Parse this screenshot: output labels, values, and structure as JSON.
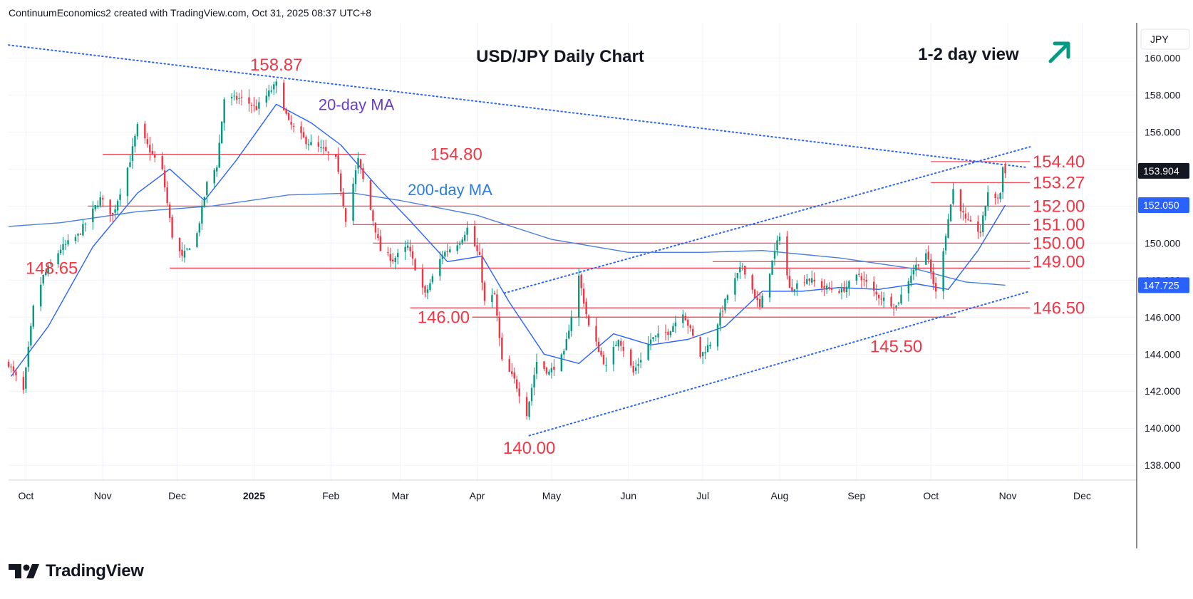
{
  "header": "ContinuumEconomics2 created with TradingView.com, Oct 31, 2025 08:37 UTC+8",
  "footer_brand": "TradingView",
  "colors": {
    "up": "#089981",
    "down": "#f23645",
    "level": "#f23645",
    "trend": "#2962ff",
    "ma20": "#2962ff",
    "ma200": "#4a7fe0",
    "label_ma20": "#6a3dc8",
    "label_ma200": "#2a7de1",
    "arrow": "#089981",
    "grid": "#f0f3fa",
    "text": "#131722"
  },
  "chart_data": {
    "type": "candlestick",
    "title": "USD/JPY Daily Chart",
    "view_label": "1-2 day view",
    "view_direction": "up",
    "currency": "JPY",
    "y_axis": {
      "range": [
        137.2,
        161.9
      ],
      "ticks": [
        "160.000",
        "158.000",
        "156.000",
        "154.000",
        "152.000",
        "150.000",
        "148.000",
        "146.000",
        "144.000",
        "142.000",
        "140.000",
        "138.000"
      ],
      "tick_values": [
        160,
        158,
        156,
        154,
        152,
        150,
        148,
        146,
        144,
        142,
        140,
        138
      ],
      "last_price": "153.904",
      "price_tags": [
        {
          "label": "153.904",
          "value": 153.904,
          "style": "dark"
        },
        {
          "label": "152.050",
          "value": 152.05,
          "style": "blue"
        },
        {
          "label": "147.725",
          "value": 147.725,
          "style": "blue"
        }
      ]
    },
    "x_axis": {
      "start": "2024-09-24",
      "end": "2025-12-23",
      "ticks": [
        {
          "label": "Oct",
          "date": "2024-10-01",
          "bold": false
        },
        {
          "label": "Nov",
          "date": "2024-11-01",
          "bold": false
        },
        {
          "label": "Dec",
          "date": "2024-12-01",
          "bold": false
        },
        {
          "label": "2025",
          "date": "2025-01-01",
          "bold": true
        },
        {
          "label": "Feb",
          "date": "2025-02-01",
          "bold": false
        },
        {
          "label": "Mar",
          "date": "2025-03-01",
          "bold": false
        },
        {
          "label": "Apr",
          "date": "2025-04-01",
          "bold": false
        },
        {
          "label": "May",
          "date": "2025-05-01",
          "bold": false
        },
        {
          "label": "Jun",
          "date": "2025-06-01",
          "bold": false
        },
        {
          "label": "Jul",
          "date": "2025-07-01",
          "bold": false
        },
        {
          "label": "Aug",
          "date": "2025-08-01",
          "bold": false
        },
        {
          "label": "Sep",
          "date": "2025-09-01",
          "bold": false
        },
        {
          "label": "Oct",
          "date": "2025-10-01",
          "bold": false
        },
        {
          "label": "Nov",
          "date": "2025-11-01",
          "bold": false
        },
        {
          "label": "Dec",
          "date": "2025-12-01",
          "bold": false
        }
      ]
    },
    "grid": true,
    "price_anchors": [
      [
        "2024-09-24",
        143.5
      ],
      [
        "2024-09-30",
        142.0
      ],
      [
        "2024-10-04",
        146.5
      ],
      [
        "2024-10-08",
        148.2
      ],
      [
        "2024-10-15",
        149.7
      ],
      [
        "2024-10-22",
        150.4
      ],
      [
        "2024-10-31",
        152.4
      ],
      [
        "2024-11-05",
        151.5
      ],
      [
        "2024-11-12",
        154.5
      ],
      [
        "2024-11-15",
        156.3
      ],
      [
        "2024-11-20",
        155.0
      ],
      [
        "2024-11-25",
        153.9
      ],
      [
        "2024-11-29",
        150.4
      ],
      [
        "2024-12-03",
        149.2
      ],
      [
        "2024-12-09",
        150.5
      ],
      [
        "2024-12-13",
        153.2
      ],
      [
        "2024-12-17",
        154.2
      ],
      [
        "2024-12-20",
        157.8
      ],
      [
        "2024-12-27",
        157.8
      ],
      [
        "2025-01-02",
        157.3
      ],
      [
        "2025-01-10",
        158.6
      ],
      [
        "2025-01-15",
        156.5
      ],
      [
        "2025-01-22",
        155.5
      ],
      [
        "2025-01-29",
        155.0
      ],
      [
        "2025-02-03",
        154.5
      ],
      [
        "2025-02-07",
        151.3
      ],
      [
        "2025-02-12",
        154.5
      ],
      [
        "2025-02-17",
        151.8
      ],
      [
        "2025-02-21",
        149.6
      ],
      [
        "2025-02-26",
        149.1
      ],
      [
        "2025-03-04",
        149.8
      ],
      [
        "2025-03-11",
        147.2
      ],
      [
        "2025-03-18",
        149.4
      ],
      [
        "2025-03-25",
        150.1
      ],
      [
        "2025-03-28",
        150.8
      ],
      [
        "2025-04-02",
        149.2
      ],
      [
        "2025-04-04",
        146.8
      ],
      [
        "2025-04-08",
        147.2
      ],
      [
        "2025-04-11",
        143.6
      ],
      [
        "2025-04-16",
        142.6
      ],
      [
        "2025-04-21",
        140.8
      ],
      [
        "2025-04-25",
        143.6
      ],
      [
        "2025-04-30",
        143.0
      ],
      [
        "2025-05-06",
        144.0
      ],
      [
        "2025-05-12",
        148.2
      ],
      [
        "2025-05-16",
        145.5
      ],
      [
        "2025-05-23",
        143.3
      ],
      [
        "2025-05-28",
        144.9
      ],
      [
        "2025-06-03",
        143.0
      ],
      [
        "2025-06-10",
        144.8
      ],
      [
        "2025-06-17",
        145.2
      ],
      [
        "2025-06-23",
        146.3
      ],
      [
        "2025-06-30",
        143.9
      ],
      [
        "2025-07-04",
        144.6
      ],
      [
        "2025-07-11",
        147.2
      ],
      [
        "2025-07-17",
        148.8
      ],
      [
        "2025-07-24",
        146.5
      ],
      [
        "2025-08-01",
        150.5
      ],
      [
        "2025-08-05",
        147.5
      ],
      [
        "2025-08-12",
        148.1
      ],
      [
        "2025-08-19",
        147.6
      ],
      [
        "2025-08-26",
        147.4
      ],
      [
        "2025-09-02",
        148.3
      ],
      [
        "2025-09-09",
        147.2
      ],
      [
        "2025-09-17",
        146.6
      ],
      [
        "2025-09-24",
        148.6
      ],
      [
        "2025-09-29",
        149.5
      ],
      [
        "2025-10-03",
        147.3
      ],
      [
        "2025-10-07",
        150.5
      ],
      [
        "2025-10-10",
        152.9
      ],
      [
        "2025-10-15",
        151.2
      ],
      [
        "2025-10-21",
        150.6
      ],
      [
        "2025-10-24",
        152.8
      ],
      [
        "2025-10-27",
        152.3
      ],
      [
        "2025-10-29",
        152.7
      ],
      [
        "2025-10-30",
        154.1
      ],
      [
        "2025-10-31",
        153.9
      ]
    ],
    "ma20_anchors": [
      [
        "2024-09-25",
        142.8
      ],
      [
        "2024-10-10",
        145.5
      ],
      [
        "2024-10-28",
        149.8
      ],
      [
        "2024-11-15",
        152.7
      ],
      [
        "2024-11-28",
        154.0
      ],
      [
        "2024-12-12",
        152.3
      ],
      [
        "2024-12-25",
        154.5
      ],
      [
        "2025-01-10",
        157.5
      ],
      [
        "2025-01-24",
        156.5
      ],
      [
        "2025-02-05",
        155.3
      ],
      [
        "2025-02-20",
        153.0
      ],
      [
        "2025-03-05",
        151.2
      ],
      [
        "2025-03-20",
        149.0
      ],
      [
        "2025-04-03",
        149.3
      ],
      [
        "2025-04-14",
        146.8
      ],
      [
        "2025-04-28",
        144.0
      ],
      [
        "2025-05-12",
        143.5
      ],
      [
        "2025-05-26",
        145.1
      ],
      [
        "2025-06-10",
        144.5
      ],
      [
        "2025-06-25",
        144.8
      ],
      [
        "2025-07-10",
        145.5
      ],
      [
        "2025-07-25",
        147.4
      ],
      [
        "2025-08-10",
        147.4
      ],
      [
        "2025-08-25",
        147.6
      ],
      [
        "2025-09-10",
        147.5
      ],
      [
        "2025-09-25",
        147.8
      ],
      [
        "2025-10-08",
        147.5
      ],
      [
        "2025-10-20",
        149.6
      ],
      [
        "2025-10-31",
        152.05
      ]
    ],
    "ma200_anchors": [
      [
        "2024-09-24",
        150.9
      ],
      [
        "2024-10-15",
        151.1
      ],
      [
        "2024-11-15",
        151.7
      ],
      [
        "2024-12-15",
        152.0
      ],
      [
        "2025-01-15",
        152.6
      ],
      [
        "2025-02-10",
        152.7
      ],
      [
        "2025-03-01",
        152.3
      ],
      [
        "2025-04-01",
        151.5
      ],
      [
        "2025-05-01",
        150.2
      ],
      [
        "2025-06-01",
        149.5
      ],
      [
        "2025-07-01",
        149.5
      ],
      [
        "2025-07-25",
        149.6
      ],
      [
        "2025-08-25",
        149.2
      ],
      [
        "2025-09-25",
        148.6
      ],
      [
        "2025-10-15",
        147.9
      ],
      [
        "2025-10-31",
        147.725
      ]
    ],
    "trendlines": [
      {
        "name": "descending-resistance",
        "from": [
          "2024-09-24",
          160.7
        ],
        "to": [
          "2025-11-08",
          154.1
        ]
      },
      {
        "name": "channel-support",
        "from": [
          "2025-04-22",
          139.6
        ],
        "to": [
          "2025-11-10",
          147.4
        ]
      },
      {
        "name": "channel-resistance",
        "from": [
          "2025-04-12",
          147.3
        ],
        "to": [
          "2025-11-10",
          155.2
        ]
      }
    ],
    "levels": [
      {
        "label": "154.80",
        "value": 154.8,
        "from": "2024-11-01",
        "to": "2025-02-15",
        "label_date": "2025-03-13",
        "label_side": "right"
      },
      {
        "label": "154.40",
        "value": 154.4,
        "from": "2025-10-01",
        "to": "2025-11-10",
        "label_date": "2025-11-11",
        "label_side": "right"
      },
      {
        "label": "153.27",
        "value": 153.27,
        "from": "2025-10-01",
        "to": "2025-11-10",
        "label_date": "2025-11-11",
        "label_side": "right"
      },
      {
        "label": "152.00",
        "value": 152.0,
        "from": "2024-10-26",
        "to": "2025-11-10",
        "label_date": "2025-11-11",
        "label_side": "right"
      },
      {
        "label": "151.00",
        "value": 151.0,
        "from": "2025-02-10",
        "to": "2025-11-10",
        "label_date": "2025-11-11",
        "label_side": "right"
      },
      {
        "label": "150.00",
        "value": 150.0,
        "from": "2025-02-18",
        "to": "2025-11-10",
        "label_date": "2025-11-11",
        "label_side": "right"
      },
      {
        "label": "149.00",
        "value": 149.0,
        "from": "2025-07-05",
        "to": "2025-11-10",
        "label_date": "2025-11-11",
        "label_side": "right"
      },
      {
        "label": "148.65",
        "value": 148.65,
        "from": "2024-11-28",
        "to": "2025-11-10",
        "label_date": "2024-10-22",
        "label_side": "left"
      },
      {
        "label": "146.50",
        "value": 146.5,
        "from": "2025-03-05",
        "to": "2025-11-10",
        "label_date": "2025-11-11",
        "label_side": "right"
      },
      {
        "label": "146.00",
        "value": 146.0,
        "from": "2025-03-30",
        "to": "2025-10-11",
        "label_date": "2025-03-29",
        "label_side": "left"
      }
    ],
    "annotations": [
      {
        "label": "158.87",
        "value": 158.87,
        "date": "2025-01-10",
        "position": "above"
      },
      {
        "label": "140.00",
        "value": 140.0,
        "date": "2025-04-22",
        "position": "below"
      },
      {
        "label": "145.50",
        "value": 145.5,
        "date": "2025-09-17",
        "position": "below"
      }
    ],
    "ma_labels": [
      {
        "label": "20-day MA",
        "date": "2025-01-27",
        "value": 157.5,
        "color": "label_ma20"
      },
      {
        "label": "200-day MA",
        "date": "2025-03-04",
        "value": 152.9,
        "color": "label_ma200"
      }
    ]
  }
}
